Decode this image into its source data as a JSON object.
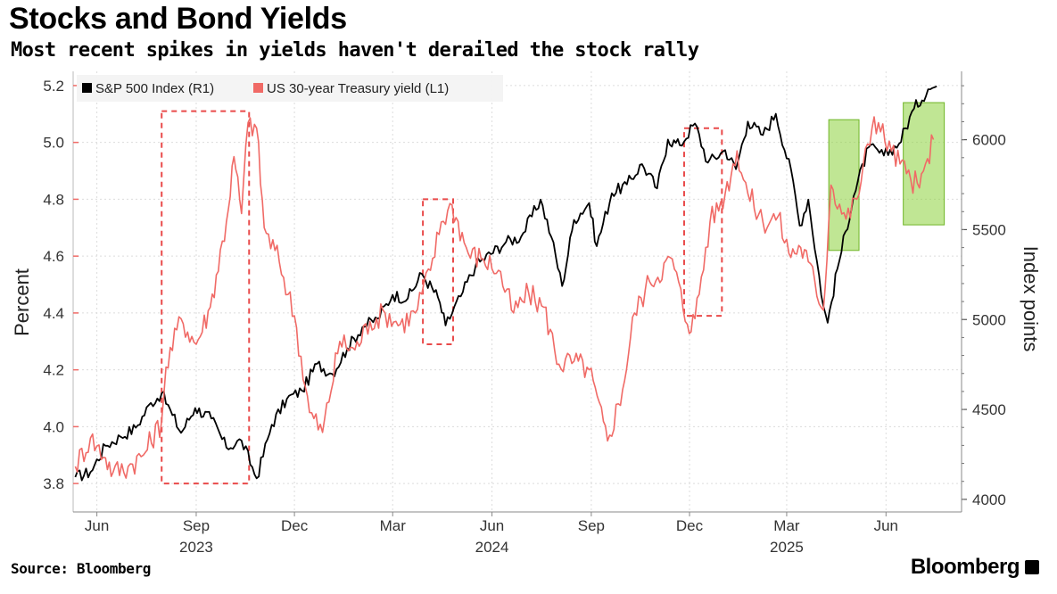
{
  "header": {
    "title": "Stocks and Bond Yields",
    "subtitle": "Most recent spikes in yields haven't derailed the stock rally"
  },
  "footer": {
    "source": "Source: Bloomberg",
    "brand": "Bloomberg"
  },
  "chart_data": {
    "type": "line",
    "xlabel": "",
    "ylabel_left": "Percent",
    "ylabel_right": "Index points",
    "x_ticks": [
      {
        "label": "Jun",
        "date": "2023-06-01"
      },
      {
        "label": "Sep",
        "date": "2023-09-01"
      },
      {
        "label": "Dec",
        "date": "2023-12-01"
      },
      {
        "label": "Mar",
        "date": "2024-03-01"
      },
      {
        "label": "Jun",
        "date": "2024-06-01"
      },
      {
        "label": "Sep",
        "date": "2024-09-01"
      },
      {
        "label": "Dec",
        "date": "2024-12-01"
      },
      {
        "label": "Mar",
        "date": "2025-03-01"
      },
      {
        "label": "Jun",
        "date": "2025-06-01"
      }
    ],
    "year_labels": [
      {
        "label": "2023",
        "date": "2023-09-01"
      },
      {
        "label": "2024",
        "date": "2024-06-01"
      },
      {
        "label": "2025",
        "date": "2025-03-01"
      }
    ],
    "xlim": [
      "2023-05-10",
      "2025-08-10"
    ],
    "ylim_left": [
      3.7,
      5.25
    ],
    "ylim_right": [
      3930,
      6380
    ],
    "left_ticks": [
      "3.8",
      "4.0",
      "4.2",
      "4.4",
      "4.6",
      "4.8",
      "5.0",
      "5.2"
    ],
    "right_ticks": [
      "4000",
      "4500",
      "5000",
      "5500",
      "6000"
    ],
    "grid": true,
    "legend_position": "top-left",
    "series": [
      {
        "name": "S&P 500 Index (R1)",
        "axis": "right",
        "color": "#000000",
        "points": [
          [
            "2023-05-12",
            4124
          ],
          [
            "2023-05-26",
            4151
          ],
          [
            "2023-06-09",
            4298
          ],
          [
            "2023-06-23",
            4348
          ],
          [
            "2023-07-07",
            4398
          ],
          [
            "2023-07-21",
            4536
          ],
          [
            "2023-07-31",
            4589
          ],
          [
            "2023-08-10",
            4468
          ],
          [
            "2023-08-18",
            4370
          ],
          [
            "2023-08-31",
            4508
          ],
          [
            "2023-09-15",
            4450
          ],
          [
            "2023-09-29",
            4288
          ],
          [
            "2023-10-13",
            4327
          ],
          [
            "2023-10-27",
            4117
          ],
          [
            "2023-11-10",
            4415
          ],
          [
            "2023-11-24",
            4559
          ],
          [
            "2023-12-08",
            4604
          ],
          [
            "2023-12-22",
            4754
          ],
          [
            "2024-01-05",
            4697
          ],
          [
            "2024-01-19",
            4840
          ],
          [
            "2024-02-02",
            4958
          ],
          [
            "2024-02-16",
            5005
          ],
          [
            "2024-03-01",
            5137
          ],
          [
            "2024-03-15",
            5117
          ],
          [
            "2024-03-28",
            5254
          ],
          [
            "2024-04-12",
            5123
          ],
          [
            "2024-04-19",
            4967
          ],
          [
            "2024-05-03",
            5128
          ],
          [
            "2024-05-17",
            5303
          ],
          [
            "2024-06-14",
            5431
          ],
          [
            "2024-06-28",
            5460
          ],
          [
            "2024-07-16",
            5667
          ],
          [
            "2024-07-26",
            5459
          ],
          [
            "2024-08-05",
            5186
          ],
          [
            "2024-08-16",
            5554
          ],
          [
            "2024-08-30",
            5648
          ],
          [
            "2024-09-06",
            5408
          ],
          [
            "2024-09-20",
            5702
          ],
          [
            "2024-10-04",
            5751
          ],
          [
            "2024-10-18",
            5864
          ],
          [
            "2024-11-01",
            5729
          ],
          [
            "2024-11-11",
            6001
          ],
          [
            "2024-11-22",
            5969
          ],
          [
            "2024-12-06",
            6090
          ],
          [
            "2024-12-18",
            5872
          ],
          [
            "2025-01-03",
            5942
          ],
          [
            "2025-01-13",
            5836
          ],
          [
            "2025-01-24",
            6101
          ],
          [
            "2025-02-07",
            6026
          ],
          [
            "2025-02-19",
            6144
          ],
          [
            "2025-03-07",
            5770
          ],
          [
            "2025-03-13",
            5522
          ],
          [
            "2025-03-21",
            5667
          ],
          [
            "2025-04-04",
            5074
          ],
          [
            "2025-04-08",
            4982
          ],
          [
            "2025-04-17",
            5282
          ],
          [
            "2025-05-02",
            5686
          ],
          [
            "2025-05-16",
            5958
          ],
          [
            "2025-05-30",
            5912
          ],
          [
            "2025-06-13",
            5977
          ],
          [
            "2025-06-27",
            6173
          ],
          [
            "2025-07-10",
            6280
          ],
          [
            "2025-07-18",
            6297
          ]
        ]
      },
      {
        "name": "US 30-year Treasury yield (L1)",
        "axis": "left",
        "color": "#f06a66",
        "points": [
          [
            "2023-05-12",
            3.86
          ],
          [
            "2023-05-26",
            3.96
          ],
          [
            "2023-06-09",
            3.89
          ],
          [
            "2023-06-16",
            3.84
          ],
          [
            "2023-06-30",
            3.86
          ],
          [
            "2023-07-14",
            3.9
          ],
          [
            "2023-07-31",
            4.02
          ],
          [
            "2023-08-04",
            4.21
          ],
          [
            "2023-08-18",
            4.38
          ],
          [
            "2023-09-01",
            4.29
          ],
          [
            "2023-09-14",
            4.42
          ],
          [
            "2023-09-29",
            4.72
          ],
          [
            "2023-10-06",
            4.95
          ],
          [
            "2023-10-13",
            4.75
          ],
          [
            "2023-10-19",
            5.07
          ],
          [
            "2023-10-27",
            5.05
          ],
          [
            "2023-11-03",
            4.7
          ],
          [
            "2023-11-17",
            4.58
          ],
          [
            "2023-12-01",
            4.39
          ],
          [
            "2023-12-15",
            4.05
          ],
          [
            "2023-12-27",
            3.98
          ],
          [
            "2024-01-12",
            4.3
          ],
          [
            "2024-01-26",
            4.27
          ],
          [
            "2024-02-09",
            4.37
          ],
          [
            "2024-02-23",
            4.4
          ],
          [
            "2024-03-08",
            4.36
          ],
          [
            "2024-03-22",
            4.4
          ],
          [
            "2024-04-05",
            4.55
          ],
          [
            "2024-04-15",
            4.72
          ],
          [
            "2024-04-25",
            4.78
          ],
          [
            "2024-05-10",
            4.61
          ],
          [
            "2024-05-24",
            4.59
          ],
          [
            "2024-06-07",
            4.55
          ],
          [
            "2024-06-21",
            4.4
          ],
          [
            "2024-07-05",
            4.47
          ],
          [
            "2024-07-19",
            4.42
          ],
          [
            "2024-08-02",
            4.22
          ],
          [
            "2024-08-16",
            4.23
          ],
          [
            "2024-08-30",
            4.2
          ],
          [
            "2024-09-16",
            3.95
          ],
          [
            "2024-09-30",
            4.13
          ],
          [
            "2024-10-11",
            4.4
          ],
          [
            "2024-10-25",
            4.51
          ],
          [
            "2024-11-15",
            4.59
          ],
          [
            "2024-11-29",
            4.36
          ],
          [
            "2024-12-06",
            4.38
          ],
          [
            "2024-12-20",
            4.72
          ],
          [
            "2025-01-03",
            4.82
          ],
          [
            "2025-01-14",
            4.97
          ],
          [
            "2025-01-24",
            4.82
          ],
          [
            "2025-02-07",
            4.72
          ],
          [
            "2025-02-21",
            4.74
          ],
          [
            "2025-03-03",
            4.61
          ],
          [
            "2025-03-14",
            4.63
          ],
          [
            "2025-03-21",
            4.58
          ],
          [
            "2025-04-04",
            4.41
          ],
          [
            "2025-04-09",
            4.72
          ],
          [
            "2025-04-11",
            4.85
          ],
          [
            "2025-04-25",
            4.73
          ],
          [
            "2025-05-05",
            4.8
          ],
          [
            "2025-05-21",
            5.09
          ],
          [
            "2025-06-06",
            4.97
          ],
          [
            "2025-06-20",
            4.89
          ],
          [
            "2025-07-02",
            4.84
          ],
          [
            "2025-07-15",
            5.01
          ]
        ]
      }
    ],
    "highlights": [
      {
        "style": "dashed-red",
        "x": [
          "2023-07-31",
          "2023-10-20"
        ],
        "y_left": [
          3.8,
          5.11
        ]
      },
      {
        "style": "dashed-red",
        "x": [
          "2024-03-29",
          "2024-04-26"
        ],
        "y_left": [
          4.29,
          4.8
        ]
      },
      {
        "style": "dashed-red",
        "x": [
          "2024-11-26",
          "2024-12-31"
        ],
        "y_left": [
          4.39,
          5.05
        ]
      },
      {
        "style": "green-box",
        "x": [
          "2025-04-09",
          "2025-05-07"
        ],
        "y_left": [
          4.62,
          5.08
        ]
      },
      {
        "style": "green-box",
        "x": [
          "2025-06-17",
          "2025-07-25"
        ],
        "y_left": [
          4.71,
          5.14
        ]
      }
    ]
  }
}
